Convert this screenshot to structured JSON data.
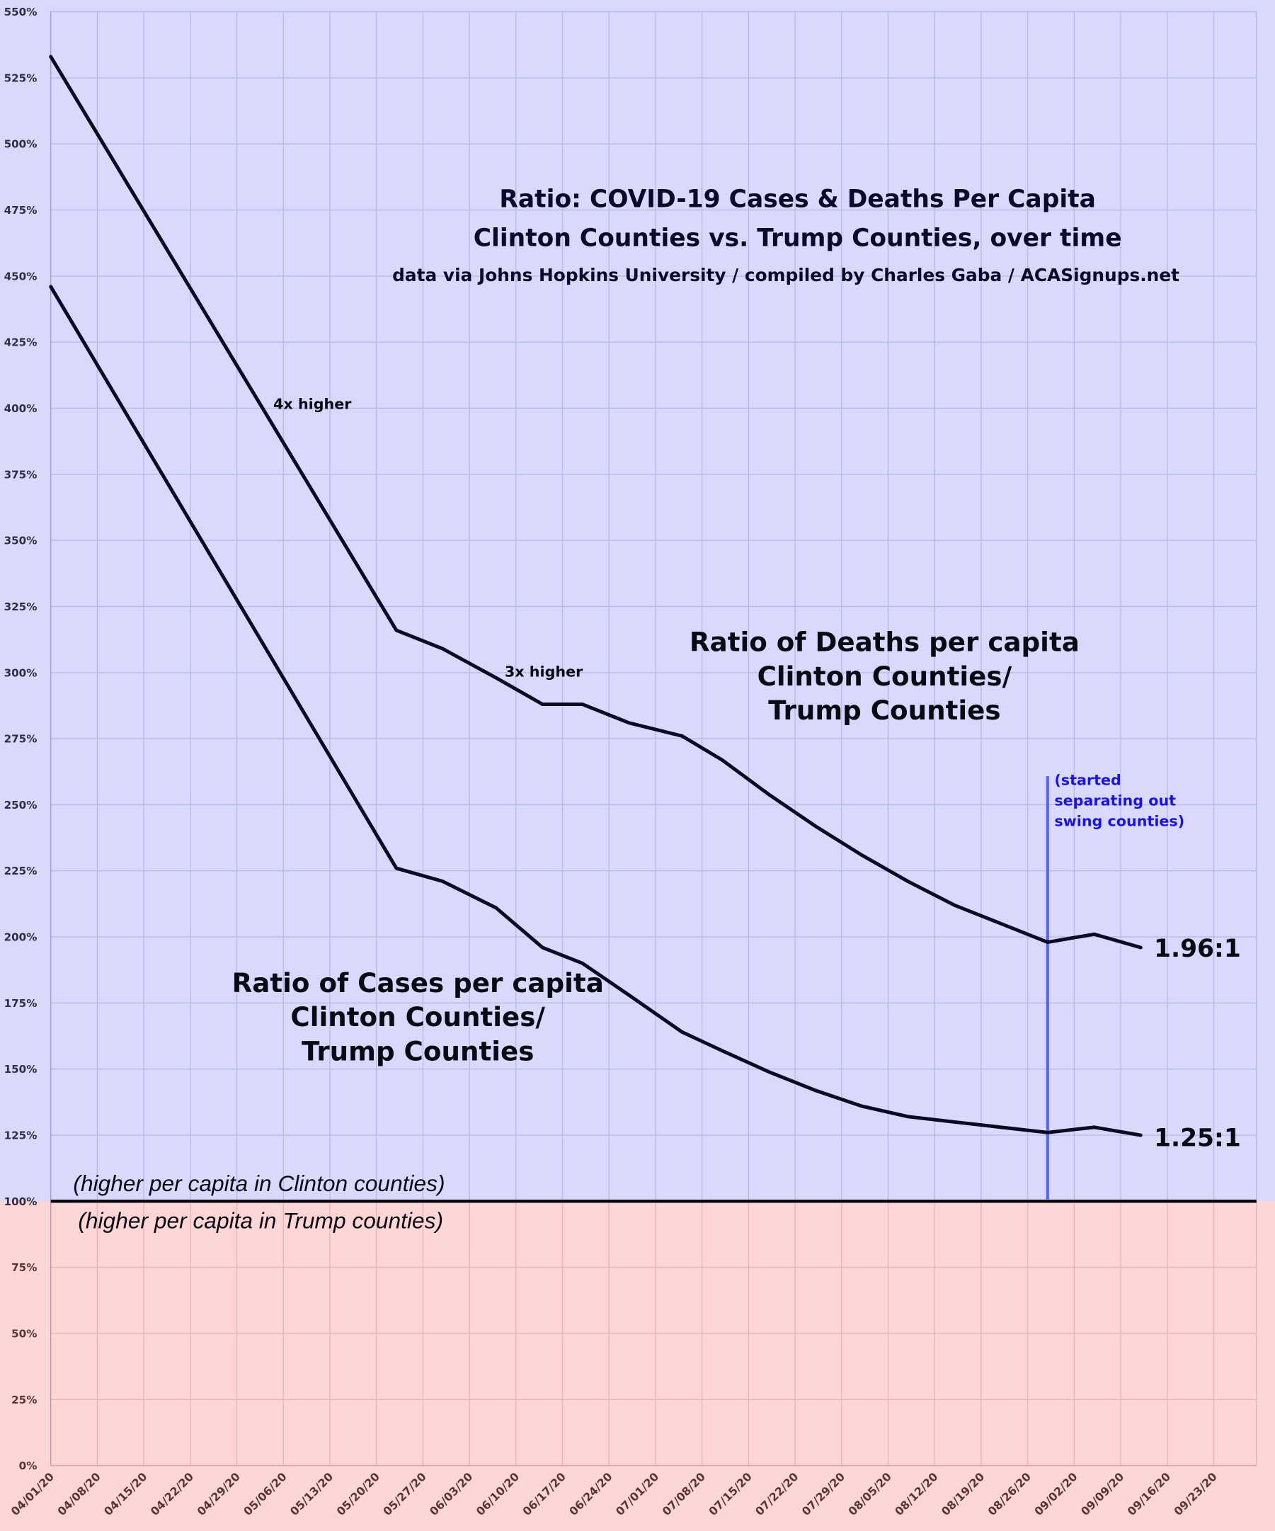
{
  "chart_data": {
    "type": "line",
    "title": [
      "Ratio: COVID-19 Cases & Deaths Per Capita",
      "Clinton Counties vs. Trump Counties, over time"
    ],
    "subtitle": "data via Johns Hopkins University / compiled by Charles Gaba / ACASignups.net",
    "xlabel": "",
    "ylabel": "",
    "ylim": [
      0,
      550
    ],
    "y_ticks": [
      "0%",
      "25%",
      "50%",
      "75%",
      "100%",
      "125%",
      "150%",
      "175%",
      "200%",
      "225%",
      "250%",
      "275%",
      "300%",
      "325%",
      "350%",
      "375%",
      "400%",
      "425%",
      "450%",
      "475%",
      "500%",
      "525%",
      "550%"
    ],
    "x_ticks": [
      "04/01/20",
      "04/08/20",
      "04/15/20",
      "04/22/20",
      "04/29/20",
      "05/06/20",
      "05/13/20",
      "05/20/20",
      "05/27/20",
      "06/03/20",
      "06/10/20",
      "06/17/20",
      "06/24/20",
      "07/01/20",
      "07/08/20",
      "07/15/20",
      "07/22/20",
      "07/29/20",
      "08/05/20",
      "08/12/20",
      "08/19/20",
      "08/26/20",
      "09/02/20",
      "09/09/20",
      "09/16/20",
      "09/23/20"
    ],
    "x_unit": "days since 04/01/20",
    "grid": true,
    "series": [
      {
        "name": "Ratio of Deaths per capita Clinton Counties/ Trump Counties",
        "label_lines": [
          "Ratio of Deaths per capita",
          "Clinton Counties/",
          "Trump Counties"
        ],
        "x": [
          0,
          52,
          59,
          67,
          74,
          80,
          87,
          95,
          101,
          108,
          115,
          122,
          129,
          136,
          143,
          150,
          157,
          164
        ],
        "values": [
          533,
          316,
          309,
          298,
          288,
          288,
          281,
          276,
          267,
          254,
          242,
          231,
          221,
          212,
          205,
          198,
          201,
          196
        ],
        "end_label": "1.96:1"
      },
      {
        "name": "Ratio of Cases per capita Clinton Counties/ Trump Counties",
        "label_lines": [
          "Ratio of Cases per capita",
          "Clinton Counties/",
          "Trump Counties"
        ],
        "x": [
          0,
          52,
          59,
          67,
          74,
          80,
          87,
          95,
          101,
          108,
          115,
          122,
          129,
          136,
          143,
          150,
          157,
          164
        ],
        "values": [
          446,
          226,
          221,
          211,
          196,
          190,
          178,
          164,
          157,
          149,
          142,
          136,
          132,
          130,
          128,
          126,
          128,
          125
        ],
        "end_label": "1.25:1"
      }
    ],
    "annotations": {
      "four_x": "4x higher",
      "three_x": "3x higher",
      "swing_note": [
        "(started",
        "separating out",
        "swing counties)"
      ],
      "swing_day": 150,
      "above_baseline": "(higher per capita in Clinton counties)",
      "below_baseline": "(higher per capita in Trump counties)"
    },
    "colors": {
      "above_bg": "#d9d9fd",
      "below_bg": "#ffd6d6",
      "line": "#0a0a24",
      "swing_line": "#5466ee",
      "swing_text": "#1a12e6"
    }
  }
}
